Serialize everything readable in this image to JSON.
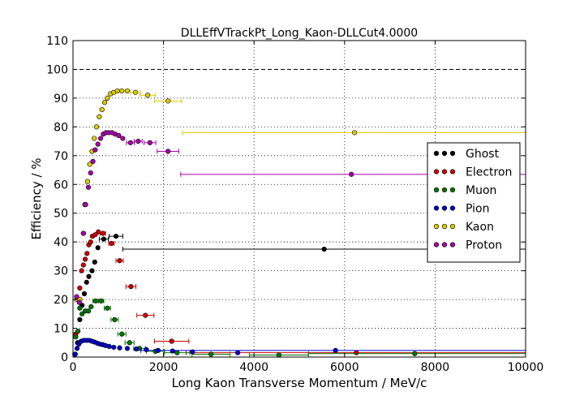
{
  "chart_data": {
    "type": "scatter",
    "title": "DLLEffVTrackPt_Long_Kaon-DLLCut4.0000",
    "xlabel": "Long Kaon Transverse Momentum / MeV/c",
    "ylabel": "Efficiency / %",
    "xlim": [
      0,
      10000
    ],
    "ylim": [
      0,
      110
    ],
    "xticks": [
      "0",
      "2000",
      "4000",
      "6000",
      "8000",
      "10000"
    ],
    "yticks": [
      "0",
      "10",
      "20",
      "30",
      "40",
      "50",
      "60",
      "70",
      "80",
      "90",
      "100",
      "110"
    ],
    "grid": true,
    "reference_line": 100,
    "legend_position": "right",
    "series": [
      {
        "name": "Ghost",
        "color": "#000000",
        "points": [
          {
            "x": 50,
            "y": 1
          },
          {
            "x": 100,
            "y": 5
          },
          {
            "x": 150,
            "y": 13
          },
          {
            "x": 200,
            "y": 18
          },
          {
            "x": 250,
            "y": 22
          },
          {
            "x": 300,
            "y": 26
          },
          {
            "x": 350,
            "y": 28
          },
          {
            "x": 420,
            "y": 30
          },
          {
            "x": 480,
            "y": 33
          },
          {
            "x": 550,
            "y": 38
          },
          {
            "x": 680,
            "y": 41,
            "xerr": 100
          },
          {
            "x": 950,
            "y": 42,
            "xerr": 150
          },
          {
            "x": 5550,
            "y": 37.5,
            "xlo": 1100,
            "xhi": 10000
          }
        ]
      },
      {
        "name": "Electron",
        "color": "#cc0000",
        "points": [
          {
            "x": 60,
            "y": 8
          },
          {
            "x": 110,
            "y": 20
          },
          {
            "x": 150,
            "y": 24
          },
          {
            "x": 190,
            "y": 30
          },
          {
            "x": 230,
            "y": 32
          },
          {
            "x": 270,
            "y": 34
          },
          {
            "x": 310,
            "y": 36
          },
          {
            "x": 350,
            "y": 39
          },
          {
            "x": 390,
            "y": 40
          },
          {
            "x": 430,
            "y": 42
          },
          {
            "x": 490,
            "y": 42.5
          },
          {
            "x": 560,
            "y": 43.5
          },
          {
            "x": 660,
            "y": 43,
            "xerr": 60
          },
          {
            "x": 850,
            "y": 39.5,
            "xerr": 60
          },
          {
            "x": 1030,
            "y": 33.5,
            "xerr": 80
          },
          {
            "x": 1280,
            "y": 24.5,
            "xerr": 110
          },
          {
            "x": 1600,
            "y": 14.5,
            "xerr": 190
          },
          {
            "x": 2180,
            "y": 5.5,
            "xerr": 380
          },
          {
            "x": 6260,
            "y": 1.5,
            "xlo": 2500,
            "xhi": 10000
          }
        ]
      },
      {
        "name": "Muon",
        "color": "#007700",
        "points": [
          {
            "x": 60,
            "y": 7
          },
          {
            "x": 110,
            "y": 9
          },
          {
            "x": 150,
            "y": 17
          },
          {
            "x": 200,
            "y": 15
          },
          {
            "x": 270,
            "y": 16
          },
          {
            "x": 340,
            "y": 16
          },
          {
            "x": 400,
            "y": 17.5
          },
          {
            "x": 500,
            "y": 19.5,
            "xerr": 60
          },
          {
            "x": 620,
            "y": 19.5,
            "xerr": 60
          },
          {
            "x": 760,
            "y": 17,
            "xerr": 70
          },
          {
            "x": 920,
            "y": 13,
            "xerr": 80
          },
          {
            "x": 1080,
            "y": 8,
            "xerr": 90
          },
          {
            "x": 1250,
            "y": 5,
            "xerr": 100
          },
          {
            "x": 1470,
            "y": 3,
            "xerr": 130
          },
          {
            "x": 1820,
            "y": 2,
            "xerr": 200
          },
          {
            "x": 2300,
            "y": 1.5,
            "xerr": 280
          },
          {
            "x": 3050,
            "y": 1,
            "xerr": 420
          },
          {
            "x": 4550,
            "y": 0.7,
            "xerr": 650
          },
          {
            "x": 7550,
            "y": 1.2,
            "xlo": 5200,
            "xhi": 10000
          }
        ]
      },
      {
        "name": "Pion",
        "color": "#0000cc",
        "points": [
          {
            "x": 40,
            "y": 1
          },
          {
            "x": 90,
            "y": 3
          },
          {
            "x": 130,
            "y": 4.5
          },
          {
            "x": 180,
            "y": 5.5
          },
          {
            "x": 240,
            "y": 5.8
          },
          {
            "x": 300,
            "y": 5.8
          },
          {
            "x": 360,
            "y": 5.8
          },
          {
            "x": 420,
            "y": 5.5
          },
          {
            "x": 480,
            "y": 5.2
          },
          {
            "x": 540,
            "y": 4.8
          },
          {
            "x": 600,
            "y": 4.5
          },
          {
            "x": 660,
            "y": 4.3
          },
          {
            "x": 720,
            "y": 4
          },
          {
            "x": 800,
            "y": 3.7
          },
          {
            "x": 900,
            "y": 3.4
          },
          {
            "x": 1030,
            "y": 3.2
          },
          {
            "x": 1200,
            "y": 3
          },
          {
            "x": 1400,
            "y": 2.8
          },
          {
            "x": 1620,
            "y": 2.6
          },
          {
            "x": 1880,
            "y": 2.3
          },
          {
            "x": 2200,
            "y": 2.1
          },
          {
            "x": 2640,
            "y": 1.8
          },
          {
            "x": 3640,
            "y": 1.5
          },
          {
            "x": 5800,
            "y": 2.3,
            "xlo": 1500,
            "xhi": 10000
          }
        ]
      },
      {
        "name": "Kaon",
        "color": "#ddcc00",
        "points": [
          {
            "x": 80,
            "y": 20
          },
          {
            "x": 150,
            "y": 20
          },
          {
            "x": 230,
            "y": 43
          },
          {
            "x": 260,
            "y": 53
          },
          {
            "x": 320,
            "y": 61
          },
          {
            "x": 370,
            "y": 67
          },
          {
            "x": 420,
            "y": 71.5
          },
          {
            "x": 470,
            "y": 76
          },
          {
            "x": 520,
            "y": 80
          },
          {
            "x": 580,
            "y": 83.5
          },
          {
            "x": 640,
            "y": 86
          },
          {
            "x": 700,
            "y": 88.5
          },
          {
            "x": 760,
            "y": 90
          },
          {
            "x": 830,
            "y": 91.5
          },
          {
            "x": 900,
            "y": 92
          },
          {
            "x": 980,
            "y": 92.5
          },
          {
            "x": 1080,
            "y": 92.5
          },
          {
            "x": 1200,
            "y": 92.5
          },
          {
            "x": 1380,
            "y": 92,
            "xerr": 110
          },
          {
            "x": 1650,
            "y": 91,
            "xerr": 170
          },
          {
            "x": 2100,
            "y": 89,
            "xerr": 300
          },
          {
            "x": 6220,
            "y": 78,
            "xlo": 2420,
            "xhi": 10000
          }
        ]
      },
      {
        "name": "Proton",
        "color": "#aa00aa",
        "points": [
          {
            "x": 80,
            "y": 21
          },
          {
            "x": 140,
            "y": 19
          },
          {
            "x": 230,
            "y": 43
          },
          {
            "x": 280,
            "y": 53
          },
          {
            "x": 340,
            "y": 59
          },
          {
            "x": 390,
            "y": 64
          },
          {
            "x": 440,
            "y": 68
          },
          {
            "x": 490,
            "y": 72
          },
          {
            "x": 550,
            "y": 74
          },
          {
            "x": 610,
            "y": 76
          },
          {
            "x": 670,
            "y": 77.5
          },
          {
            "x": 730,
            "y": 78
          },
          {
            "x": 790,
            "y": 78
          },
          {
            "x": 860,
            "y": 78
          },
          {
            "x": 930,
            "y": 77.5
          },
          {
            "x": 1010,
            "y": 77
          },
          {
            "x": 1100,
            "y": 76
          },
          {
            "x": 1270,
            "y": 74.5,
            "xerr": 90
          },
          {
            "x": 1440,
            "y": 75,
            "xerr": 90
          },
          {
            "x": 1700,
            "y": 74.5,
            "xerr": 130
          },
          {
            "x": 2100,
            "y": 71.5,
            "xerr": 240
          },
          {
            "x": 6150,
            "y": 63.5,
            "xlo": 2380,
            "xhi": 10000
          }
        ]
      }
    ]
  }
}
